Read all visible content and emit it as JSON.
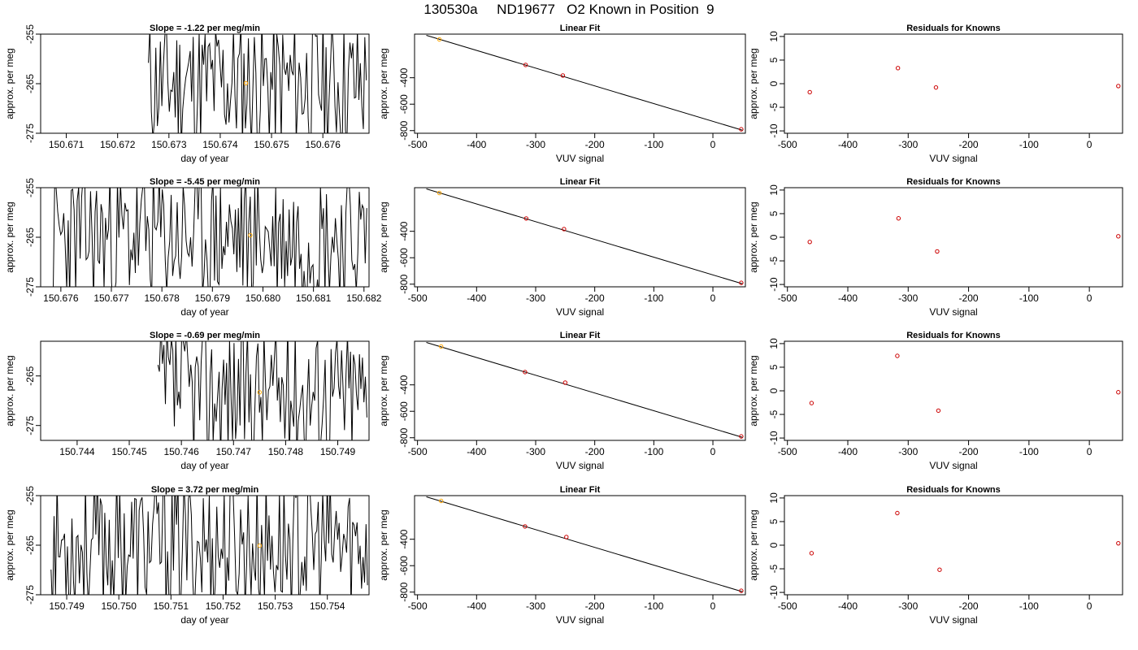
{
  "page_title": "130530a     ND19677   O2 Known in Position  9",
  "colors": {
    "line": "#000000",
    "highlight": "#ffa500",
    "residual": "#cc0000",
    "frame": "#000000"
  },
  "chart_data": [
    {
      "panel": "ts",
      "row": 1,
      "type": "line",
      "title": "Slope =  -1.22  per meg/min",
      "xlabel": "day of year",
      "ylabel": "approx. per meg",
      "xlim": [
        150.6705,
        150.6769
      ],
      "ylim": [
        -275,
        -255
      ],
      "xticks": [
        "150.671",
        "150.672",
        "150.673",
        "150.674",
        "150.675",
        "150.676"
      ],
      "yticks": [
        "-255",
        "-265",
        "-275"
      ],
      "data_start": 150.6726,
      "seed": 11,
      "highlight_point": {
        "x": 150.6745,
        "y": -264.9
      }
    },
    {
      "panel": "fit",
      "row": 1,
      "type": "scatter",
      "title": "Linear Fit",
      "xlabel": "VUV signal",
      "ylabel": "approx. per meg",
      "xlim": [
        -505,
        55
      ],
      "ylim": [
        -820,
        -70
      ],
      "xticks": [
        "-500",
        "-400",
        "-300",
        "-200",
        "-100",
        "0"
      ],
      "yticks": [
        "-400",
        "-600",
        "-800"
      ],
      "points": [
        [
          -463,
          -110
        ],
        [
          -317,
          -303
        ],
        [
          -254,
          -383
        ],
        [
          48,
          -790
        ]
      ],
      "highlight_index": 0,
      "fit_line": {
        "x": [
          -485,
          50
        ],
        "y": [
          -79,
          -797
        ]
      }
    },
    {
      "panel": "res",
      "row": 1,
      "type": "scatter",
      "title": "Residuals for Knowns",
      "xlabel": "VUV signal",
      "ylabel": "approx. per meg",
      "xlim": [
        -505,
        55
      ],
      "ylim": [
        -10.5,
        10.5
      ],
      "xticks": [
        "-500",
        "-400",
        "-300",
        "-200",
        "-100",
        "0"
      ],
      "yticks": [
        "10",
        "5",
        "0",
        "-5",
        "-10"
      ],
      "points": [
        [
          -463,
          -1.8
        ],
        [
          -317,
          3.3
        ],
        [
          -254,
          -0.8
        ],
        [
          48,
          -0.5
        ]
      ]
    },
    {
      "panel": "ts",
      "row": 2,
      "type": "line",
      "title": "Slope =  -5.45  per meg/min",
      "xlabel": "day of year",
      "ylabel": "approx. per meg",
      "xlim": [
        150.6756,
        150.6821
      ],
      "ylim": [
        -275,
        -255
      ],
      "xticks": [
        "150.676",
        "150.677",
        "150.678",
        "150.679",
        "150.680",
        "150.681",
        "150.682"
      ],
      "yticks": [
        "-255",
        "-265",
        "-275"
      ],
      "data_start": 150.67585,
      "seed": 23,
      "highlight_point": {
        "x": 150.67975,
        "y": -264.6
      }
    },
    {
      "panel": "fit",
      "row": 2,
      "type": "scatter",
      "title": "Linear Fit",
      "xlabel": "VUV signal",
      "ylabel": "approx. per meg",
      "xlim": [
        -505,
        55
      ],
      "ylim": [
        -820,
        -70
      ],
      "xticks": [
        "-500",
        "-400",
        "-300",
        "-200",
        "-100",
        "0"
      ],
      "yticks": [
        "-400",
        "-600",
        "-800"
      ],
      "points": [
        [
          -463,
          -110
        ],
        [
          -316,
          -303
        ],
        [
          -252,
          -383
        ],
        [
          48,
          -790
        ]
      ],
      "highlight_index": 0,
      "fit_line": {
        "x": [
          -485,
          50
        ],
        "y": [
          -79,
          -797
        ]
      }
    },
    {
      "panel": "res",
      "row": 2,
      "type": "scatter",
      "title": "Residuals for Knowns",
      "xlabel": "VUV signal",
      "ylabel": "approx. per meg",
      "xlim": [
        -505,
        55
      ],
      "ylim": [
        -10.5,
        10.5
      ],
      "xticks": [
        "-500",
        "-400",
        "-300",
        "-200",
        "-100",
        "0"
      ],
      "yticks": [
        "10",
        "5",
        "0",
        "-5",
        "-10"
      ],
      "points": [
        [
          -463,
          -1.0
        ],
        [
          -316,
          4.0
        ],
        [
          -252,
          -3.0
        ],
        [
          48,
          0.2
        ]
      ]
    },
    {
      "panel": "ts",
      "row": 3,
      "type": "line",
      "title": "Slope =  -0.69  per meg/min",
      "xlabel": "day of year",
      "ylabel": "approx. per meg",
      "xlim": [
        150.7433,
        150.7496
      ],
      "ylim": [
        -278,
        -258
      ],
      "xticks": [
        "150.744",
        "150.745",
        "150.746",
        "150.747",
        "150.748",
        "150.749"
      ],
      "yticks": [
        "-265",
        "-275"
      ],
      "data_start": 150.74555,
      "seed": 37,
      "highlight_point": {
        "x": 150.7475,
        "y": -268.3
      }
    },
    {
      "panel": "fit",
      "row": 3,
      "type": "scatter",
      "title": "Linear Fit",
      "xlabel": "VUV signal",
      "ylabel": "approx. per meg",
      "xlim": [
        -505,
        55
      ],
      "ylim": [
        -820,
        -70
      ],
      "xticks": [
        "-500",
        "-400",
        "-300",
        "-200",
        "-100",
        "0"
      ],
      "yticks": [
        "-400",
        "-600",
        "-800"
      ],
      "points": [
        [
          -460,
          -110
        ],
        [
          -318,
          -303
        ],
        [
          -250,
          -383
        ],
        [
          48,
          -790
        ]
      ],
      "highlight_index": 0,
      "fit_line": {
        "x": [
          -485,
          50
        ],
        "y": [
          -79,
          -797
        ]
      }
    },
    {
      "panel": "res",
      "row": 3,
      "type": "scatter",
      "title": "Residuals for Knowns",
      "xlabel": "VUV signal",
      "ylabel": "approx. per meg",
      "xlim": [
        -505,
        55
      ],
      "ylim": [
        -10.5,
        10.5
      ],
      "xticks": [
        "-500",
        "-400",
        "-300",
        "-200",
        "-100",
        "0"
      ],
      "yticks": [
        "10",
        "5",
        "0",
        "-5",
        "-10"
      ],
      "points": [
        [
          -460,
          -2.6
        ],
        [
          -318,
          7.4
        ],
        [
          -250,
          -4.2
        ],
        [
          48,
          -0.3
        ]
      ]
    },
    {
      "panel": "ts",
      "row": 4,
      "type": "line",
      "title": "Slope =  3.72  per meg/min",
      "xlabel": "day of year",
      "ylabel": "approx. per meg",
      "xlim": [
        150.7485,
        150.7548
      ],
      "ylim": [
        -275,
        -255
      ],
      "xticks": [
        "150.749",
        "150.750",
        "150.751",
        "150.752",
        "150.753",
        "150.754"
      ],
      "yticks": [
        "-255",
        "-265",
        "-275"
      ],
      "data_start": 150.7487,
      "seed": 53,
      "highlight_point": {
        "x": 150.7527,
        "y": -265.1
      }
    },
    {
      "panel": "fit",
      "row": 4,
      "type": "scatter",
      "title": "Linear Fit",
      "xlabel": "VUV signal",
      "ylabel": "approx. per meg",
      "xlim": [
        -505,
        55
      ],
      "ylim": [
        -820,
        -70
      ],
      "xticks": [
        "-500",
        "-400",
        "-300",
        "-200",
        "-100",
        "0"
      ],
      "yticks": [
        "-400",
        "-600",
        "-800"
      ],
      "points": [
        [
          -460,
          -110
        ],
        [
          -318,
          -303
        ],
        [
          -248,
          -383
        ],
        [
          48,
          -790
        ]
      ],
      "highlight_index": 0,
      "fit_line": {
        "x": [
          -485,
          50
        ],
        "y": [
          -79,
          -797
        ]
      }
    },
    {
      "panel": "res",
      "row": 4,
      "type": "scatter",
      "title": "Residuals for Knowns",
      "xlabel": "VUV signal",
      "ylabel": "approx. per meg",
      "xlim": [
        -505,
        55
      ],
      "ylim": [
        -10.5,
        10.5
      ],
      "xticks": [
        "-500",
        "-400",
        "-300",
        "-200",
        "-100",
        "0"
      ],
      "yticks": [
        "10",
        "5",
        "0",
        "-5",
        "-10"
      ],
      "points": [
        [
          -460,
          -1.7
        ],
        [
          -318,
          6.8
        ],
        [
          -248,
          -5.2
        ],
        [
          48,
          0.4
        ]
      ]
    }
  ]
}
